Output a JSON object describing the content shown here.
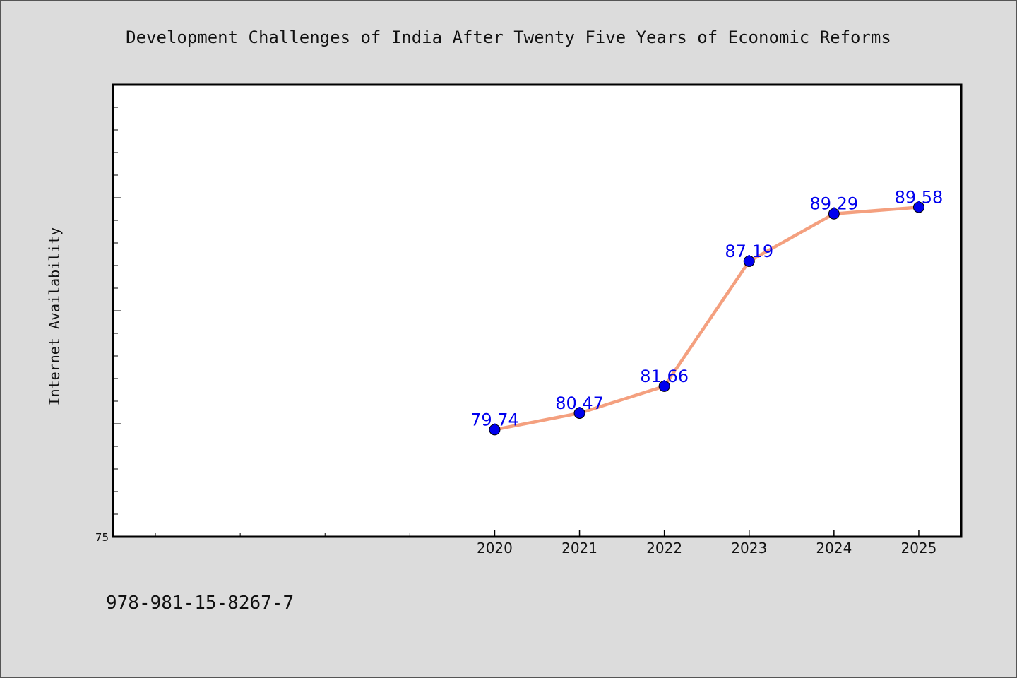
{
  "chart_data": {
    "type": "line",
    "title": "Development Challenges of India After Twenty Five Years of Economic Reforms",
    "xlabel": "",
    "ylabel": "Internet Availability",
    "categories": [
      "2020",
      "2021",
      "2022",
      "2023",
      "2024",
      "2025"
    ],
    "values": [
      79.74,
      80.47,
      81.66,
      87.19,
      89.29,
      89.58
    ],
    "data_labels": [
      "79.74",
      "80.47",
      "81.66",
      "87.19",
      "89.29",
      "89.58"
    ],
    "xlim": [
      2015.5,
      2025.5
    ],
    "ylim": [
      75,
      95
    ],
    "y_tick_labels": [
      "75"
    ],
    "grid": false,
    "legend": "none",
    "line_color": "#f4a07f",
    "marker_color": "#0000ee"
  },
  "footer_text": "978-981-15-8267-7"
}
